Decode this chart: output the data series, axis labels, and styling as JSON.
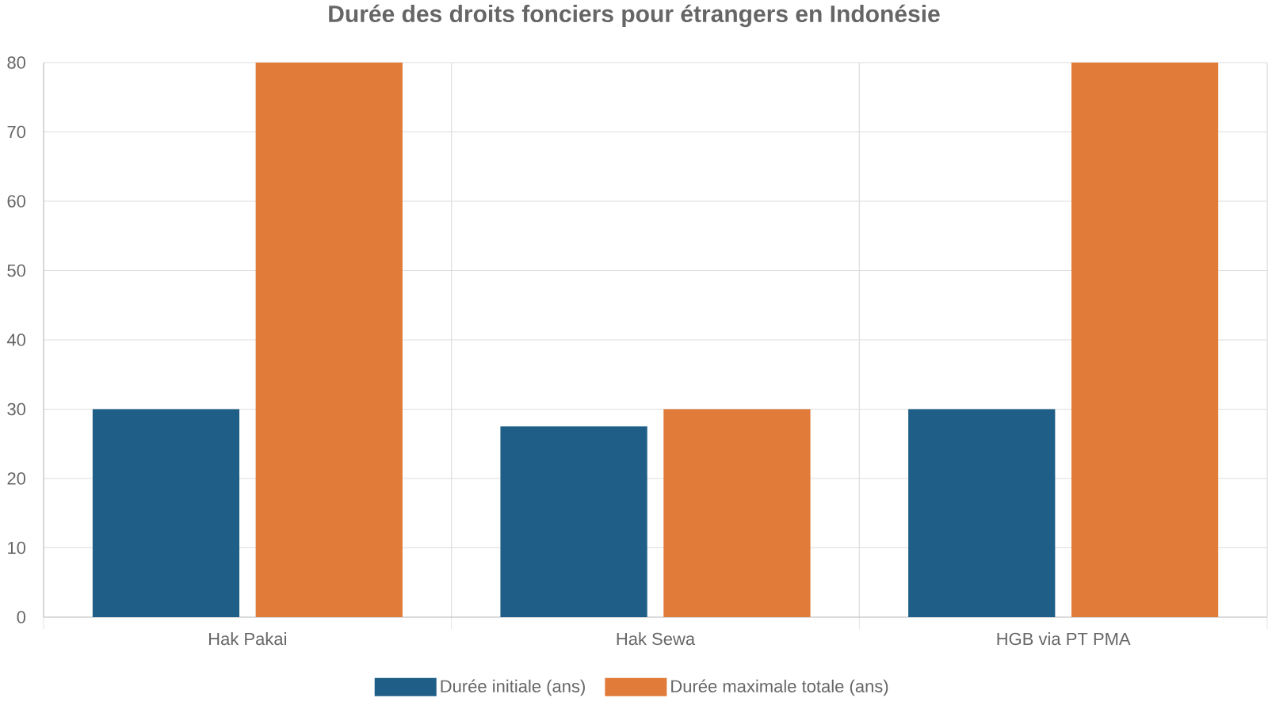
{
  "chart_data": {
    "type": "bar",
    "title": "Durée des droits fonciers pour étrangers en Indonésie",
    "categories": [
      "Hak Pakai",
      "Hak Sewa",
      "HGB via PT PMA"
    ],
    "series": [
      {
        "name": "Durée initiale (ans)",
        "color": "#1f5f87",
        "values": [
          30,
          27.5,
          30
        ]
      },
      {
        "name": "Durée maximale totale (ans)",
        "color": "#e07b3a",
        "values": [
          80,
          30,
          80
        ]
      }
    ],
    "ylim": [
      0,
      80
    ],
    "yticks": [
      0,
      10,
      20,
      30,
      40,
      50,
      60,
      70,
      80
    ],
    "grid": true,
    "legend": "bottom"
  }
}
